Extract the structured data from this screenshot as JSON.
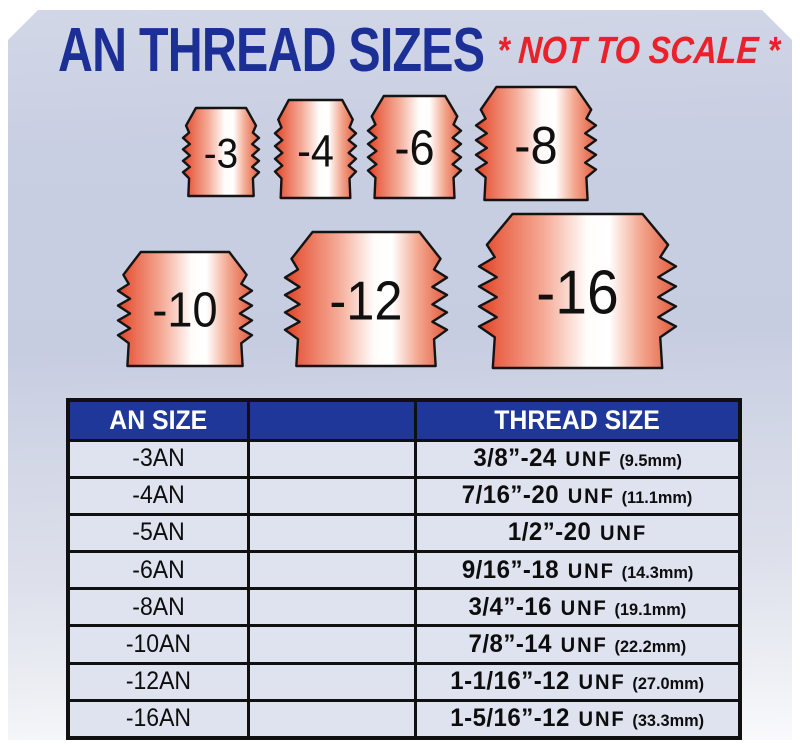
{
  "title": "AN THREAD SIZES",
  "subtitle": "* NOT TO SCALE *",
  "colors": {
    "panel_blue": "#c9cfe2",
    "title_blue": "#1c2f97",
    "accent_red": "#e8212b",
    "header_navy": "#1e3799",
    "cell_bg": "#dfe3ef",
    "fitting_red": "#e04526",
    "outline_black": "#101010"
  },
  "fittings": [
    {
      "label": "-3"
    },
    {
      "label": "-4"
    },
    {
      "label": "-6"
    },
    {
      "label": "-8"
    },
    {
      "label": "-10"
    },
    {
      "label": "-12"
    },
    {
      "label": "-16"
    }
  ],
  "table": {
    "headers": [
      "AN SIZE",
      "",
      "THREAD SIZE"
    ],
    "rows": [
      {
        "an": "-3AN",
        "size": "3/8”-24",
        "unit": "UNF",
        "mm": "(9.5mm)"
      },
      {
        "an": "-4AN",
        "size": "7/16”-20",
        "unit": "UNF",
        "mm": "(11.1mm)"
      },
      {
        "an": "-5AN",
        "size": "1/2”-20",
        "unit": "UNF",
        "mm": ""
      },
      {
        "an": "-6AN",
        "size": "9/16”-18",
        "unit": "UNF",
        "mm": "(14.3mm)"
      },
      {
        "an": "-8AN",
        "size": "3/4”-16",
        "unit": "UNF",
        "mm": "(19.1mm)"
      },
      {
        "an": "-10AN",
        "size": "7/8”-14",
        "unit": "UNF",
        "mm": "(22.2mm)"
      },
      {
        "an": "-12AN",
        "size": "1-1/16”-12",
        "unit": "UNF",
        "mm": "(27.0mm)"
      },
      {
        "an": "-16AN",
        "size": "1-5/16”-12",
        "unit": "UNF",
        "mm": "(33.3mm)"
      }
    ]
  }
}
